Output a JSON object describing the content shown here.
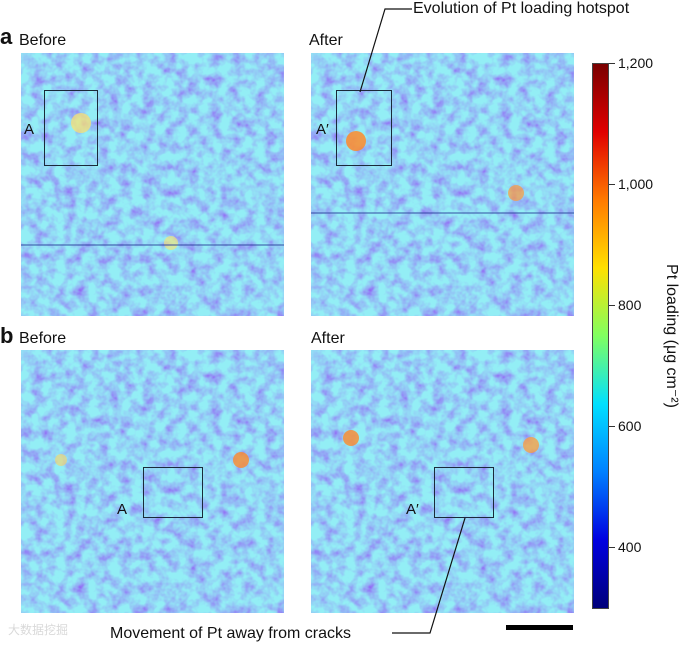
{
  "panel_a": {
    "letter": "a",
    "left_title": "Before",
    "right_title": "After",
    "left_roi_label": "A",
    "right_roi_label": "A′"
  },
  "panel_b": {
    "letter": "b",
    "left_title": "Before",
    "right_title": "After",
    "left_roi_label": "A",
    "right_roi_label": "A′"
  },
  "annotations": {
    "top": "Evolution of Pt loading hotspot",
    "bottom": "Movement of Pt away from cracks"
  },
  "colorbar": {
    "title": "Pt loading (μg cm⁻²)",
    "ticks": [
      "1,200",
      "1,000",
      "800",
      "600",
      "400"
    ],
    "colors": [
      "#7a0000",
      "#e00000",
      "#ff7a00",
      "#ffe000",
      "#80ff60",
      "#00e0ff",
      "#0080ff",
      "#0000e0",
      "#00007a"
    ]
  },
  "watermark": "大数据挖掘"
}
